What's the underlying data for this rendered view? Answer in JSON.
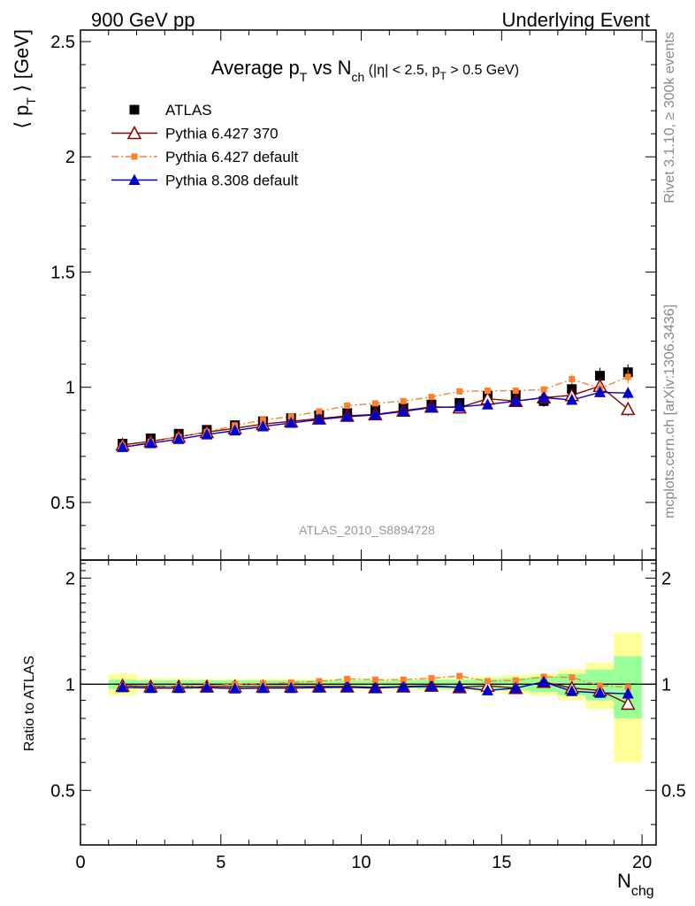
{
  "header": {
    "left": "900 GeV pp",
    "right": "Underlying Event"
  },
  "side_labels": {
    "top": "Rivet 3.1.10, ≥ 300k events",
    "bottom": "mcplots.cern.ch [arXiv:1306.3436]"
  },
  "watermark": "ATLAS_2010_S8894728",
  "colors": {
    "data": "#000000",
    "pythia6_370": "#8b0000",
    "pythia6_default": "#ff7f2a",
    "pythia8_default": "#0000cc",
    "band_green": "#99ff99",
    "band_yellow": "#ffff99"
  },
  "chart_data": [
    {
      "type": "scatter",
      "title_parts": {
        "main": "Average p",
        "sub_T": "T",
        "vs": " vs N",
        "sub_ch": "ch",
        "cuts_a": " (|η| < 2.5, p",
        "cuts_sub": "T",
        "cuts_b": " > 0.5 GeV)"
      },
      "ylabel": {
        "a": "⟨ p",
        "sub": "T",
        "b": " ⟩ [GeV]"
      },
      "xlim": [
        0,
        20.5
      ],
      "ylim": [
        0.25,
        2.55
      ],
      "yticks": [
        "0.5",
        "1",
        "1.5",
        "2",
        "2.5"
      ],
      "yticks_values": [
        0.5,
        1,
        1.5,
        2,
        2.5
      ],
      "x": [
        1.5,
        2.5,
        3.5,
        4.5,
        5.5,
        6.5,
        7.5,
        8.5,
        9.5,
        10.5,
        11.5,
        12.5,
        13.5,
        14.5,
        15.5,
        16.5,
        17.5,
        18.5,
        19.5
      ],
      "series": [
        {
          "name": "ATLAS",
          "key": "data",
          "marker": "square",
          "values": [
            0.755,
            0.778,
            0.798,
            0.815,
            0.835,
            0.852,
            0.866,
            0.878,
            0.888,
            0.902,
            0.91,
            0.925,
            0.932,
            0.962,
            0.965,
            0.94,
            0.992,
            1.05,
            1.065
          ],
          "errors": [
            0.01,
            0.01,
            0.01,
            0.01,
            0.01,
            0.01,
            0.01,
            0.01,
            0.01,
            0.01,
            0.012,
            0.012,
            0.015,
            0.02,
            0.02,
            0.025,
            0.03,
            0.035,
            0.035
          ]
        },
        {
          "name": "Pythia 6.427 370",
          "key": "pythia6_370",
          "marker": "triangle-open",
          "line": "solid",
          "values": [
            0.75,
            0.765,
            0.785,
            0.805,
            0.822,
            0.84,
            0.852,
            0.864,
            0.876,
            0.882,
            0.898,
            0.915,
            0.912,
            0.95,
            0.94,
            0.955,
            0.965,
            1.005,
            0.905
          ],
          "errors": [
            0.004,
            0.004,
            0.004,
            0.004,
            0.004,
            0.004,
            0.004,
            0.004,
            0.005,
            0.005,
            0.005,
            0.006,
            0.007,
            0.008,
            0.01,
            0.012,
            0.015,
            0.02,
            0.03
          ]
        },
        {
          "name": "Pythia 6.427 default",
          "key": "pythia6_default",
          "marker": "square-small",
          "line": "dashdot",
          "values": [
            0.745,
            0.762,
            0.785,
            0.806,
            0.834,
            0.858,
            0.873,
            0.895,
            0.92,
            0.93,
            0.94,
            0.958,
            0.982,
            0.985,
            0.985,
            0.99,
            1.035,
            0.995,
            1.045
          ],
          "errors": [
            0.004,
            0.004,
            0.004,
            0.004,
            0.004,
            0.004,
            0.005,
            0.005,
            0.005,
            0.006,
            0.006,
            0.007,
            0.008,
            0.01,
            0.012,
            0.015,
            0.02,
            0.025,
            0.03
          ]
        },
        {
          "name": "Pythia 8.308 default",
          "key": "pythia8_default",
          "marker": "triangle-filled",
          "line": "solid",
          "values": [
            0.74,
            0.757,
            0.775,
            0.795,
            0.812,
            0.83,
            0.845,
            0.86,
            0.872,
            0.88,
            0.895,
            0.912,
            0.915,
            0.925,
            0.94,
            0.955,
            0.945,
            0.978,
            0.975
          ],
          "errors": [
            0.004,
            0.004,
            0.004,
            0.004,
            0.004,
            0.004,
            0.004,
            0.004,
            0.005,
            0.005,
            0.005,
            0.006,
            0.007,
            0.008,
            0.01,
            0.012,
            0.015,
            0.02,
            0.025
          ]
        }
      ],
      "legend": "top-left"
    },
    {
      "type": "scatter",
      "ylabel": "Ratio to ATLAS",
      "xlabel": {
        "a": "N",
        "sub": "chg"
      },
      "xlim": [
        0,
        20.5
      ],
      "ylim": [
        0.35,
        2.25
      ],
      "xticks": [
        "0",
        "5",
        "10",
        "15",
        "20"
      ],
      "xticks_values": [
        0,
        5,
        10,
        15,
        20
      ],
      "yticks": [
        "0.5",
        "1",
        "2"
      ],
      "yticks_values": [
        0.5,
        1,
        2
      ],
      "yticks_right": [
        "0.5",
        "1",
        "2"
      ],
      "reference_line": 1,
      "band_x_edges": [
        1,
        2,
        3,
        4,
        5,
        6,
        7,
        8,
        9,
        10,
        11,
        12,
        13,
        14,
        15,
        16,
        17,
        18,
        19,
        20
      ],
      "band_green_halfwidth": [
        0.03,
        0.025,
        0.025,
        0.025,
        0.025,
        0.025,
        0.025,
        0.025,
        0.025,
        0.025,
        0.025,
        0.03,
        0.03,
        0.035,
        0.04,
        0.05,
        0.07,
        0.1,
        0.2
      ],
      "band_yellow_halfwidth": [
        0.07,
        0.04,
        0.04,
        0.035,
        0.035,
        0.035,
        0.035,
        0.035,
        0.035,
        0.035,
        0.035,
        0.04,
        0.04,
        0.05,
        0.06,
        0.07,
        0.1,
        0.15,
        0.4
      ],
      "x": [
        1.5,
        2.5,
        3.5,
        4.5,
        5.5,
        6.5,
        7.5,
        8.5,
        9.5,
        10.5,
        11.5,
        12.5,
        13.5,
        14.5,
        15.5,
        16.5,
        17.5,
        18.5,
        19.5
      ],
      "series": [
        {
          "name": "Pythia 6.427 370",
          "key": "pythia6_370",
          "marker": "triangle-open",
          "line": "solid",
          "values": [
            0.99,
            0.985,
            0.985,
            0.985,
            0.985,
            0.985,
            0.985,
            0.985,
            0.985,
            0.98,
            0.985,
            0.99,
            0.98,
            0.99,
            0.975,
            1.015,
            0.975,
            0.96,
            0.88
          ]
        },
        {
          "name": "Pythia 6.427 default",
          "key": "pythia6_default",
          "marker": "square-small",
          "line": "dashdot",
          "values": [
            0.985,
            0.98,
            0.985,
            0.99,
            1.0,
            1.005,
            1.01,
            1.02,
            1.035,
            1.03,
            1.03,
            1.04,
            1.055,
            1.02,
            1.025,
            1.05,
            1.045,
            0.99,
            0.98
          ]
        },
        {
          "name": "Pythia 8.308 default",
          "key": "pythia8_default",
          "marker": "triangle-filled",
          "line": "solid",
          "values": [
            0.98,
            0.975,
            0.975,
            0.978,
            0.972,
            0.975,
            0.975,
            0.978,
            0.98,
            0.975,
            0.982,
            0.985,
            0.98,
            0.96,
            0.975,
            1.015,
            0.955,
            0.945,
            0.94
          ]
        }
      ]
    }
  ]
}
